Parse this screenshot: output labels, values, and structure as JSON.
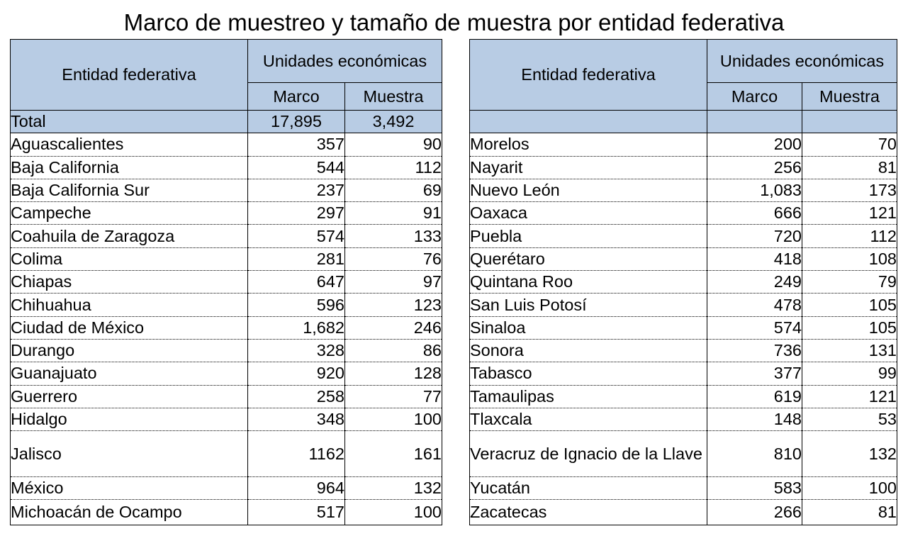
{
  "title": "Marco de muestreo y tamaño de muestra por entidad federativa",
  "header": {
    "entidad": "Entidad federativa",
    "unidades": "Unidades económicas",
    "marco": "Marco",
    "muestra": "Muestra"
  },
  "left_rows": [
    {
      "name": "Total",
      "marco": "17,895",
      "muestra": "3,492"
    },
    {
      "name": "Aguascalientes",
      "marco": "357",
      "muestra": "90"
    },
    {
      "name": "Baja California",
      "marco": "544",
      "muestra": "112"
    },
    {
      "name": "Baja California Sur",
      "marco": "237",
      "muestra": "69"
    },
    {
      "name": "Campeche",
      "marco": "297",
      "muestra": "91"
    },
    {
      "name": "Coahuila de Zaragoza",
      "marco": "574",
      "muestra": "133"
    },
    {
      "name": "Colima",
      "marco": "281",
      "muestra": "76"
    },
    {
      "name": "Chiapas",
      "marco": "647",
      "muestra": "97"
    },
    {
      "name": "Chihuahua",
      "marco": "596",
      "muestra": "123"
    },
    {
      "name": "Ciudad de México",
      "marco": "1,682",
      "muestra": "246"
    },
    {
      "name": "Durango",
      "marco": "328",
      "muestra": "86"
    },
    {
      "name": "Guanajuato",
      "marco": "920",
      "muestra": "128"
    },
    {
      "name": "Guerrero",
      "marco": "258",
      "muestra": "77"
    },
    {
      "name": "Hidalgo",
      "marco": "348",
      "muestra": "100"
    },
    {
      "name": "Jalisco",
      "marco": "1162",
      "muestra": "161"
    },
    {
      "name": "México",
      "marco": "964",
      "muestra": "132"
    },
    {
      "name": "Michoacán de Ocampo",
      "marco": "517",
      "muestra": "100"
    }
  ],
  "right_rows": [
    {
      "name": "",
      "marco": "",
      "muestra": ""
    },
    {
      "name": "Morelos",
      "marco": "200",
      "muestra": "70"
    },
    {
      "name": "Nayarit",
      "marco": "256",
      "muestra": "81"
    },
    {
      "name": "Nuevo León",
      "marco": "1,083",
      "muestra": "173"
    },
    {
      "name": "Oaxaca",
      "marco": "666",
      "muestra": "121"
    },
    {
      "name": "Puebla",
      "marco": "720",
      "muestra": "112"
    },
    {
      "name": "Querétaro",
      "marco": "418",
      "muestra": "108"
    },
    {
      "name": "Quintana Roo",
      "marco": "249",
      "muestra": "79"
    },
    {
      "name": "San Luis Potosí",
      "marco": "478",
      "muestra": "105"
    },
    {
      "name": "Sinaloa",
      "marco": "574",
      "muestra": "105"
    },
    {
      "name": "Sonora",
      "marco": "736",
      "muestra": "131"
    },
    {
      "name": "Tabasco",
      "marco": "377",
      "muestra": "99"
    },
    {
      "name": "Tamaulipas",
      "marco": "619",
      "muestra": "121"
    },
    {
      "name": "Tlaxcala",
      "marco": "148",
      "muestra": "53"
    },
    {
      "name": "Veracruz de Ignacio de la Llave",
      "marco": "810",
      "muestra": "132"
    },
    {
      "name": "Yucatán",
      "marco": "583",
      "muestra": "100"
    },
    {
      "name": "Zacatecas",
      "marco": "266",
      "muestra": "81"
    }
  ]
}
